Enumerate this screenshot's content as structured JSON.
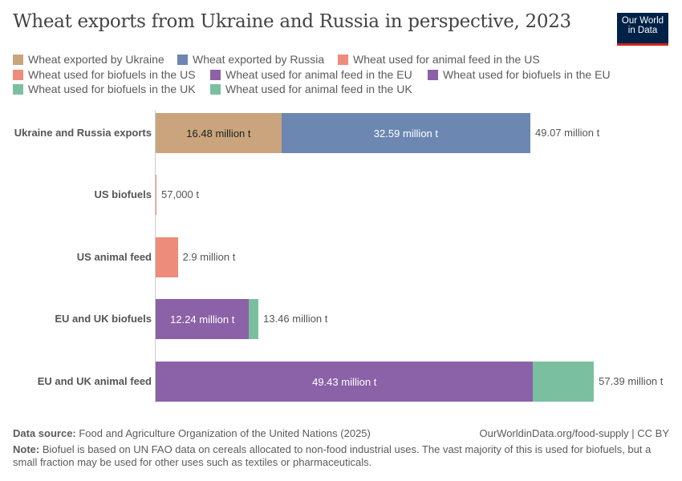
{
  "title": "Wheat exports from Ukraine and Russia in perspective, 2023",
  "logo": {
    "line1": "Our World",
    "line2": "in Data"
  },
  "chart_data": {
    "type": "bar",
    "orientation": "horizontal",
    "stacked": true,
    "unit": "million t",
    "legend": [
      {
        "name": "Wheat exported by Ukraine",
        "color": "#c9a47c"
      },
      {
        "name": "Wheat exported by Russia",
        "color": "#6d87b3"
      },
      {
        "name": "Wheat used for animal feed in the US",
        "color": "#ee8c7c"
      },
      {
        "name": "Wheat used for biofuels in the US",
        "color": "#ee8c7c"
      },
      {
        "name": "Wheat used for animal feed in the EU",
        "color": "#8b62a7"
      },
      {
        "name": "Wheat used for biofuels in the EU",
        "color": "#8b62a7"
      },
      {
        "name": "Wheat used for biofuels in the UK",
        "color": "#7bbfa1"
      },
      {
        "name": "Wheat used for animal feed in the UK",
        "color": "#7bbfa1"
      }
    ],
    "rows": [
      {
        "label": "Ukraine and Russia exports",
        "total_label": "49.07 million t",
        "segments": [
          {
            "series": "Wheat exported by Ukraine",
            "value": 16.48,
            "label": "16.48 million t",
            "text_color": "#222"
          },
          {
            "series": "Wheat exported by Russia",
            "value": 32.59,
            "label": "32.59 million t",
            "text_color": "#fff"
          }
        ]
      },
      {
        "label": "US biofuels",
        "total_label": "57,000 t",
        "segments": [
          {
            "series": "Wheat used for biofuels in the US",
            "value": 0.057
          }
        ]
      },
      {
        "label": "US animal feed",
        "total_label": "2.9 million t",
        "segments": [
          {
            "series": "Wheat used for animal feed in the US",
            "value": 2.9
          }
        ]
      },
      {
        "label": "EU and UK biofuels",
        "total_label": "13.46 million t",
        "segments": [
          {
            "series": "Wheat used for biofuels in the EU",
            "value": 12.24,
            "label": "12.24 million t",
            "text_color": "#fff"
          },
          {
            "series": "Wheat used for biofuels in the UK",
            "value": 1.22
          }
        ]
      },
      {
        "label": "EU and UK animal feed",
        "total_label": "57.39 million t",
        "segments": [
          {
            "series": "Wheat used for animal feed in the EU",
            "value": 49.43,
            "label": "49.43 million t",
            "text_color": "#fff"
          },
          {
            "series": "Wheat used for animal feed in the UK",
            "value": 7.96
          }
        ]
      }
    ],
    "xlim": [
      0,
      57.39
    ]
  },
  "footer": {
    "source_label": "Data source:",
    "source": " Food and Agriculture Organization of the United Nations (2025)",
    "url": "OurWorldinData.org/food-supply | CC BY",
    "note_label": "Note:",
    "note": " Biofuel is based on UN FAO data on cereals allocated to non-food industrial uses. The vast majority of this is used for biofuels, but a small fraction may be used for other uses such as textiles or pharmaceuticals."
  }
}
